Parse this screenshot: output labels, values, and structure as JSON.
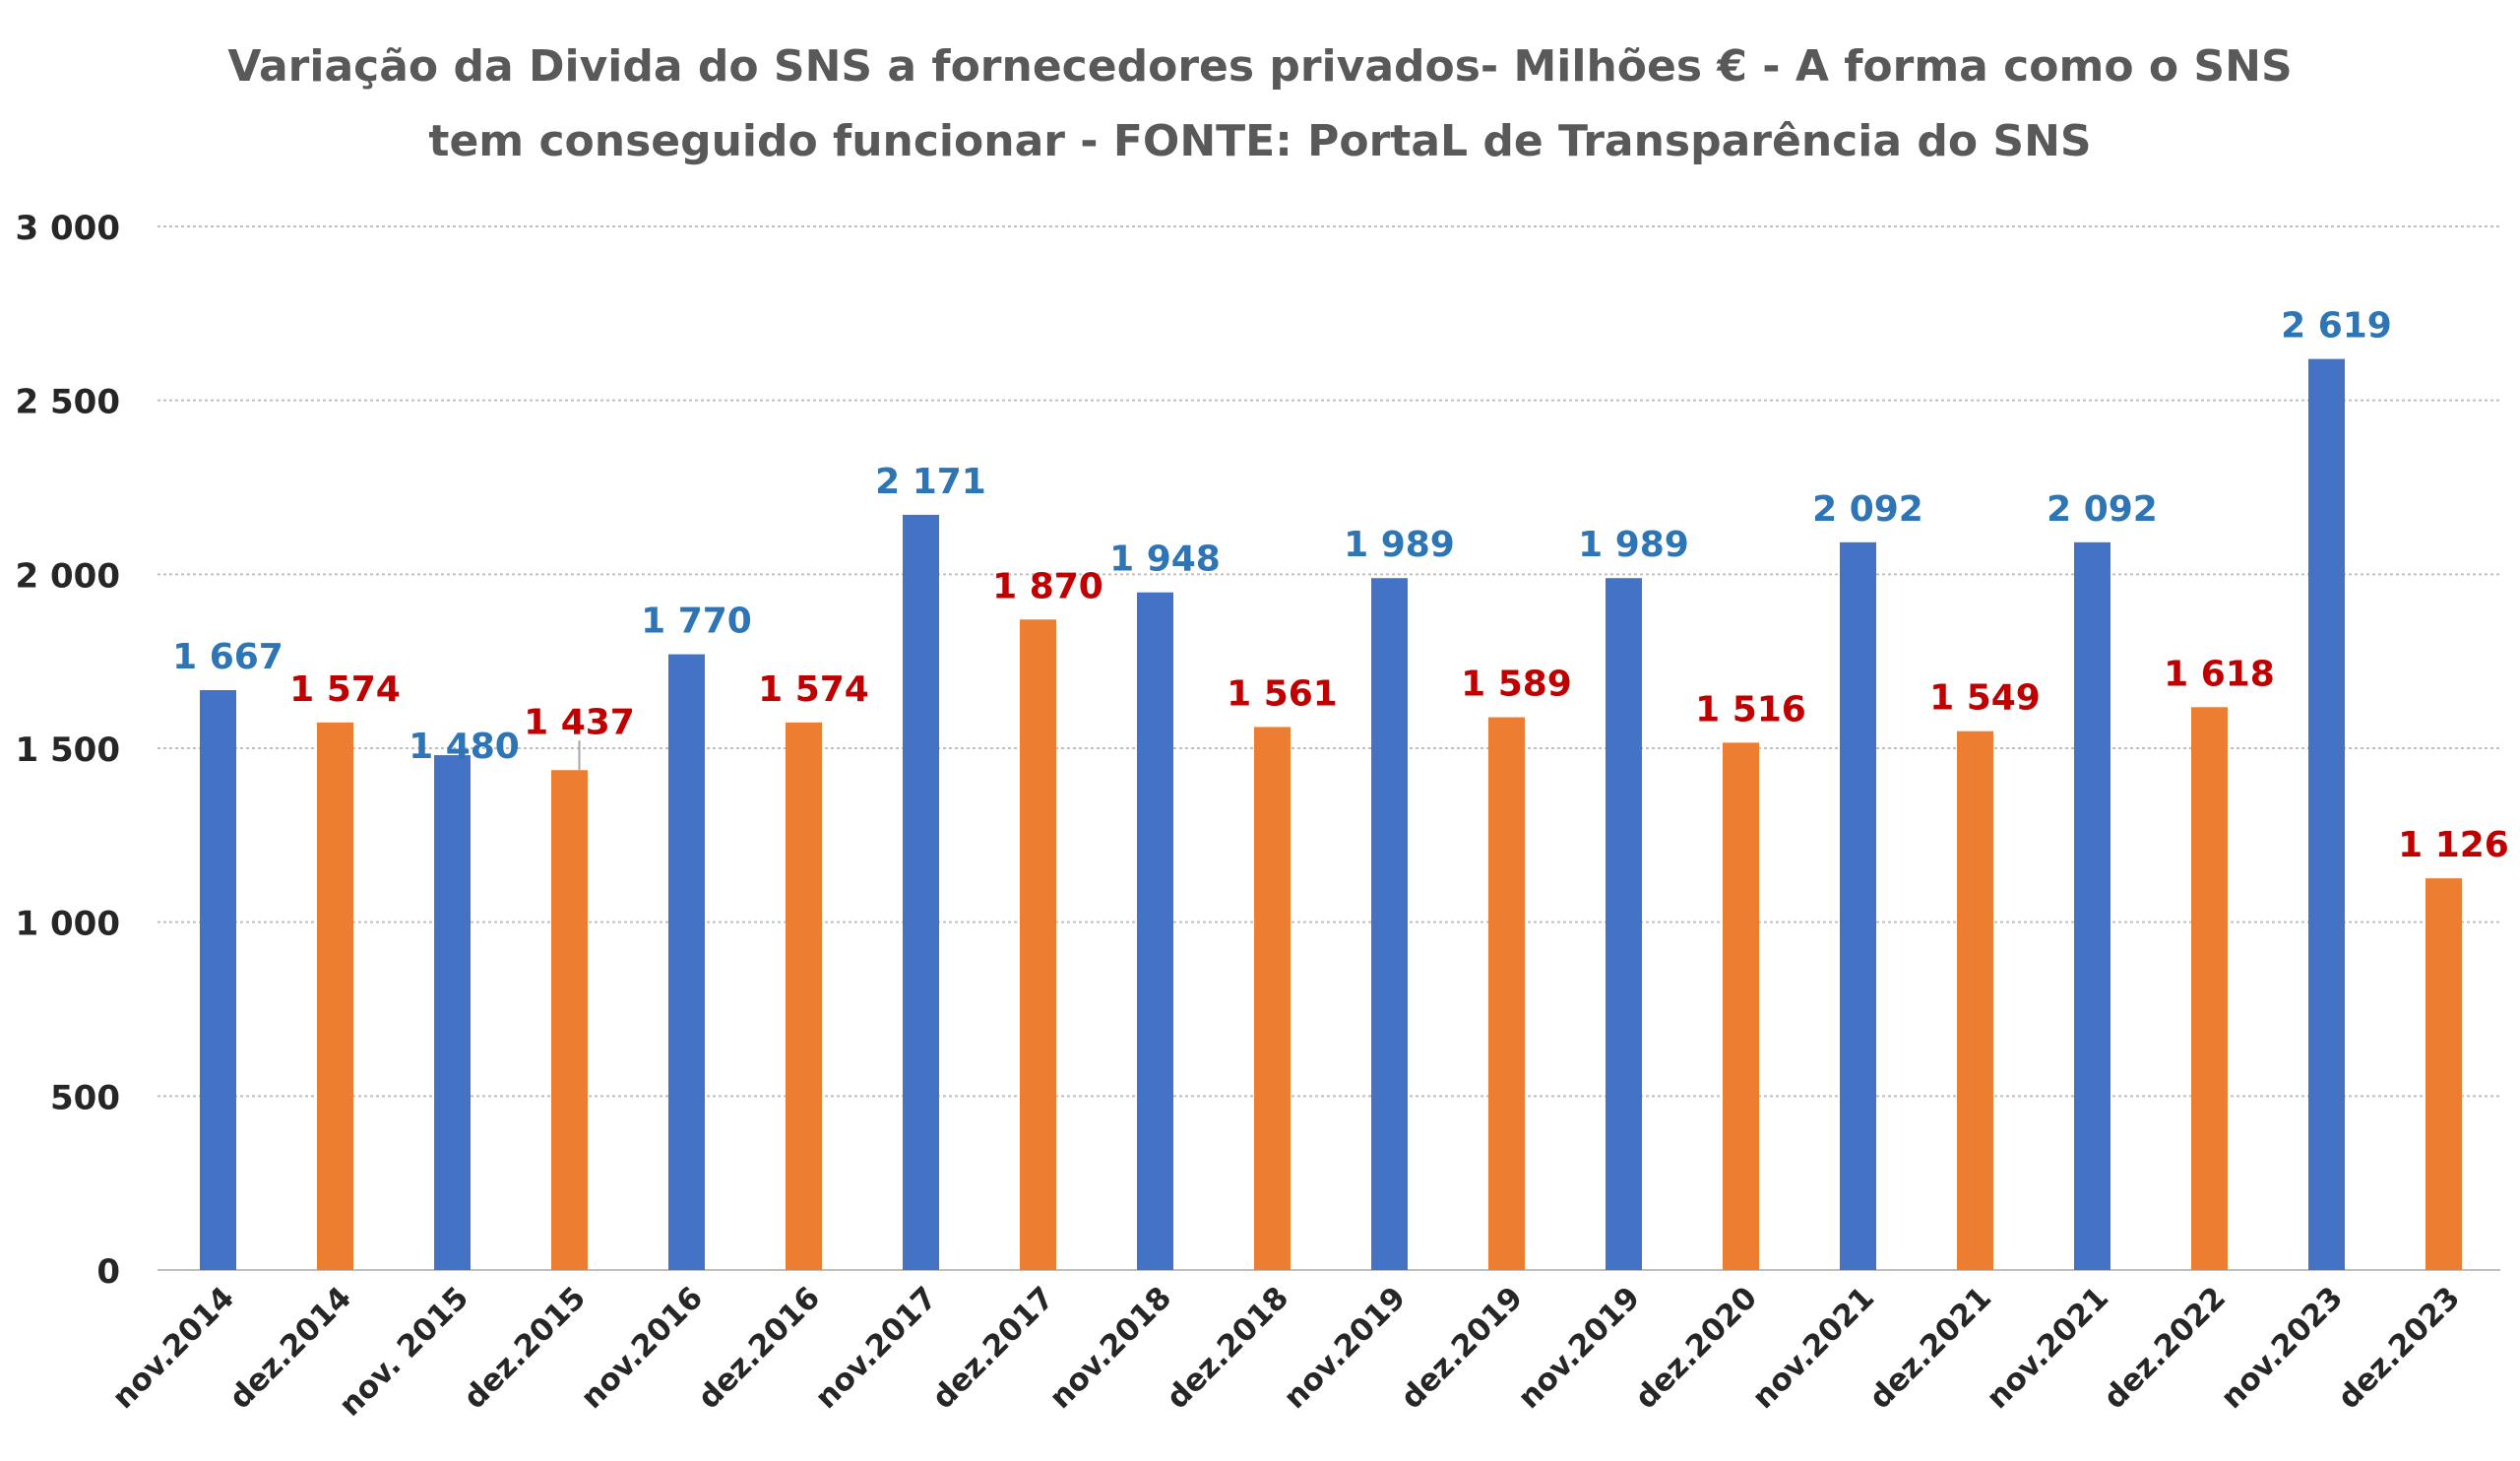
{
  "chart_data": {
    "type": "bar",
    "title_line1": "Variação da Divida do SNS a fornecedores privados- Milhões € - A forma como o SNS",
    "title_line2": "tem conseguido funcionar - FONTE: PortaL de Transparência do SNS",
    "categories": [
      "nov.2014",
      "dez.2014",
      "nov. 2015",
      "dez.2015",
      "nov.2016",
      "dez.2016",
      "nov.2017",
      "dez.2017",
      "nov.2018",
      "dez.2018",
      "nov.2019",
      "dez.2019",
      "nov.2019",
      "dez.2020",
      "nov.2021",
      "dez.2021",
      "nov.2021",
      "dez.2022",
      "nov.2023",
      "dez.2023"
    ],
    "values": [
      1667,
      1574,
      1480,
      1437,
      1770,
      1574,
      2171,
      1870,
      1948,
      1561,
      1989,
      1589,
      1989,
      1516,
      2092,
      1549,
      2092,
      1618,
      2619,
      1126
    ],
    "value_labels": [
      "1 667",
      "1 574",
      "1 480",
      "1 437",
      "1 770",
      "1 574",
      "2 171",
      "1 870",
      "1 948",
      "1 561",
      "1 989",
      "1 589",
      "1 989",
      "1 516",
      "2 092",
      "1 549",
      "2 092",
      "1 618",
      "2 619",
      "1 126"
    ],
    "yticks": [
      0,
      500,
      1000,
      1500,
      2000,
      2500,
      3000
    ],
    "ytick_labels": [
      "0",
      "500",
      "1 000",
      "1 500",
      "2 000",
      "2 500",
      "3 000"
    ],
    "ylim": [
      0,
      3000
    ],
    "grid": true,
    "colors": {
      "nov_bar": "#4472C4",
      "dez_bar": "#ED7D31",
      "nov_label": "#2E75B6",
      "dez_label": "#C00000",
      "grid": "#BFBFBF",
      "axis_text": "#262626",
      "title": "#595959"
    }
  }
}
